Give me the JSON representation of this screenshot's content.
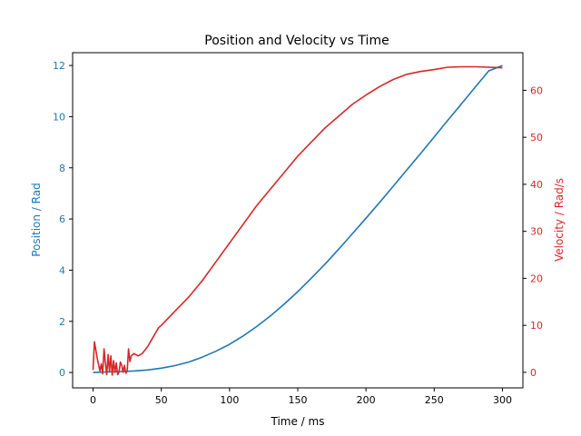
{
  "chart_data": {
    "type": "line",
    "title": "Position and Velocity vs Time",
    "xlabel": "Time / ms",
    "ylabel_left": "Position / Rad",
    "ylabel_right": "Velocity / Rad/s",
    "xlim": [
      -15,
      315
    ],
    "ylim_left": [
      -0.6,
      12.5
    ],
    "ylim_right": [
      -3.3,
      68.0
    ],
    "x_ticks": [
      0,
      50,
      100,
      150,
      200,
      250,
      300
    ],
    "y_left_ticks": [
      0,
      2,
      4,
      6,
      8,
      10,
      12
    ],
    "y_right_ticks": [
      0,
      10,
      20,
      30,
      40,
      50,
      60
    ],
    "grid": false,
    "legend": "none",
    "series": [
      {
        "axis": "left",
        "color": "#1f77b4",
        "x": [
          0,
          10,
          20,
          30,
          40,
          50,
          60,
          70,
          80,
          90,
          100,
          110,
          120,
          130,
          140,
          150,
          160,
          170,
          180,
          190,
          200,
          210,
          220,
          230,
          240,
          250,
          260,
          270,
          280,
          290,
          300
        ],
        "y": [
          0.0,
          0.02,
          0.04,
          0.06,
          0.1,
          0.17,
          0.27,
          0.41,
          0.6,
          0.83,
          1.1,
          1.43,
          1.8,
          2.21,
          2.67,
          3.16,
          3.69,
          4.24,
          4.82,
          5.42,
          6.03,
          6.65,
          7.28,
          7.92,
          8.56,
          9.21,
          9.86,
          10.5,
          11.15,
          11.79,
          12.0
        ]
      },
      {
        "axis": "right",
        "color": "#d62728",
        "x": [
          0,
          1,
          3,
          5,
          6,
          7,
          8,
          9,
          10,
          11,
          12,
          13,
          14,
          15,
          16,
          17,
          18,
          19,
          20,
          21,
          22,
          23,
          24,
          25,
          26,
          27,
          28,
          30,
          33,
          36,
          40,
          43,
          46,
          48,
          50,
          55,
          60,
          65,
          70,
          80,
          90,
          100,
          110,
          120,
          130,
          140,
          150,
          160,
          170,
          180,
          190,
          200,
          210,
          220,
          230,
          240,
          250,
          260,
          270,
          280,
          290,
          300
        ],
        "y": [
          0.5,
          6.5,
          3.0,
          0.3,
          1.8,
          -0.3,
          5.0,
          2.0,
          -0.5,
          3.8,
          0.2,
          3.5,
          -0.6,
          2.5,
          0.0,
          2.0,
          -0.5,
          0.0,
          2.2,
          1.5,
          0.0,
          1.5,
          -0.2,
          0.3,
          5.0,
          2.3,
          3.5,
          4.0,
          3.5,
          4.0,
          5.5,
          7.0,
          8.5,
          9.5,
          10.0,
          11.5,
          13.0,
          14.5,
          16.0,
          19.5,
          23.5,
          27.5,
          31.5,
          35.5,
          39.0,
          42.5,
          46.0,
          49.0,
          52.0,
          54.5,
          57.0,
          59.0,
          60.8,
          62.3,
          63.4,
          64.0,
          64.4,
          64.9,
          65.0,
          65.0,
          64.9,
          64.8
        ]
      }
    ]
  }
}
